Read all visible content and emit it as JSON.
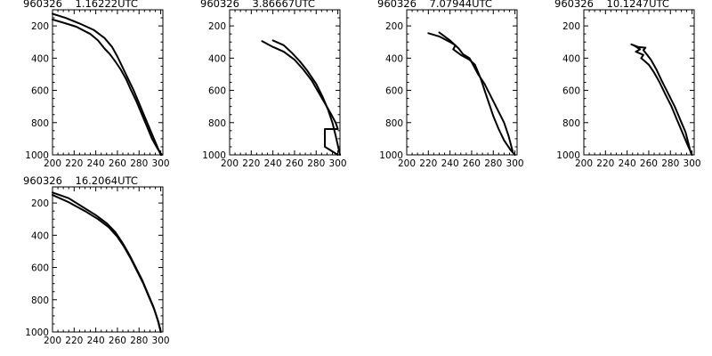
{
  "chart_data": [
    {
      "type": "line",
      "title": "960326    1.16222UTC",
      "xticks": [
        "200",
        "220",
        "240",
        "260",
        "280",
        "300"
      ],
      "yticks": [
        "200",
        "400",
        "600",
        "800",
        "1000"
      ],
      "xlim": [
        200,
        302
      ],
      "ylim": [
        1000,
        100
      ],
      "y_inverted": true,
      "series": [
        {
          "x": [
            200,
            212,
            225,
            238,
            248,
            255,
            260,
            265,
            270,
            275,
            280,
            285,
            290,
            295,
            300
          ],
          "y": [
            125,
            150,
            185,
            225,
            275,
            330,
            390,
            460,
            530,
            600,
            680,
            760,
            840,
            920,
            1000
          ]
        },
        {
          "x": [
            200,
            210,
            222,
            235,
            242,
            248,
            253,
            258,
            263,
            268,
            272,
            277,
            282,
            287,
            292,
            297,
            301
          ],
          "y": [
            160,
            180,
            205,
            250,
            290,
            340,
            375,
            420,
            470,
            530,
            590,
            660,
            740,
            820,
            900,
            960,
            1000
          ]
        }
      ]
    },
    {
      "type": "line",
      "title": "960326    3.86667UTC",
      "xticks": [
        "200",
        "220",
        "240",
        "260",
        "280",
        "300"
      ],
      "yticks": [
        "200",
        "400",
        "600",
        "800",
        "1000"
      ],
      "xlim": [
        200,
        302
      ],
      "ylim": [
        1000,
        100
      ],
      "y_inverted": true,
      "series": [
        {
          "x": [
            230,
            240,
            250,
            260,
            268,
            276,
            282,
            288,
            294,
            298,
            300,
            298,
            288,
            288,
            300
          ],
          "y": [
            295,
            330,
            360,
            410,
            470,
            540,
            610,
            680,
            750,
            800,
            840,
            840,
            840,
            950,
            1000
          ]
        },
        {
          "x": [
            240,
            250,
            258,
            265,
            272,
            280,
            286,
            291,
            295,
            298,
            302
          ],
          "y": [
            290,
            320,
            370,
            420,
            480,
            560,
            640,
            720,
            800,
            880,
            1000
          ]
        }
      ]
    },
    {
      "type": "line",
      "title": "960326    7.07944UTC",
      "xticks": [
        "200",
        "220",
        "240",
        "260",
        "280",
        "300"
      ],
      "yticks": [
        "200",
        "400",
        "600",
        "800",
        "1000"
      ],
      "xlim": [
        200,
        302
      ],
      "ylim": [
        1000,
        100
      ],
      "y_inverted": true,
      "series": [
        {
          "x": [
            220,
            230,
            240,
            245,
            243,
            250,
            258,
            263,
            268,
            272,
            276,
            280,
            285,
            290,
            296,
            300
          ],
          "y": [
            245,
            265,
            300,
            320,
            345,
            380,
            410,
            440,
            520,
            600,
            680,
            760,
            840,
            910,
            970,
            1000
          ]
        },
        {
          "x": [
            230,
            240,
            248,
            252,
            258,
            262,
            266,
            272,
            278,
            284,
            290,
            294,
            298
          ],
          "y": [
            240,
            290,
            340,
            375,
            400,
            450,
            500,
            560,
            640,
            720,
            800,
            880,
            980
          ]
        }
      ]
    },
    {
      "type": "line",
      "title": "960326    10.1247UTC",
      "xticks": [
        "200",
        "220",
        "240",
        "260",
        "280",
        "300"
      ],
      "yticks": [
        "200",
        "400",
        "600",
        "800",
        "1000"
      ],
      "xlim": [
        200,
        302
      ],
      "ylim": [
        1000,
        100
      ],
      "y_inverted": true,
      "series": [
        {
          "x": [
            246,
            252,
            248,
            255,
            253,
            260,
            265,
            270,
            275,
            281,
            286,
            291,
            296,
            300
          ],
          "y": [
            320,
            345,
            360,
            380,
            400,
            440,
            490,
            550,
            620,
            700,
            780,
            860,
            940,
            1000
          ]
        },
        {
          "x": [
            244,
            250,
            257,
            255,
            262,
            267,
            272,
            278,
            284,
            289,
            294,
            299
          ],
          "y": [
            315,
            330,
            335,
            350,
            410,
            470,
            540,
            620,
            700,
            780,
            860,
            990
          ]
        }
      ]
    },
    {
      "type": "line",
      "title": "960326    16.2064UTC",
      "xticks": [
        "200",
        "220",
        "240",
        "260",
        "280",
        "300"
      ],
      "yticks": [
        "200",
        "400",
        "600",
        "800",
        "1000"
      ],
      "xlim": [
        200,
        302
      ],
      "ylim": [
        1000,
        100
      ],
      "y_inverted": true,
      "series": [
        {
          "x": [
            200,
            215,
            230,
            242,
            252,
            260,
            266,
            272,
            278,
            284,
            289,
            294,
            298,
            300
          ],
          "y": [
            150,
            195,
            250,
            300,
            350,
            410,
            470,
            540,
            620,
            700,
            780,
            860,
            940,
            1000
          ]
        },
        {
          "x": [
            200,
            215,
            228,
            240,
            250,
            258,
            265,
            271,
            277,
            283,
            288,
            293,
            297,
            300
          ],
          "y": [
            135,
            170,
            225,
            275,
            325,
            380,
            450,
            520,
            600,
            680,
            760,
            840,
            920,
            995
          ]
        }
      ]
    }
  ]
}
